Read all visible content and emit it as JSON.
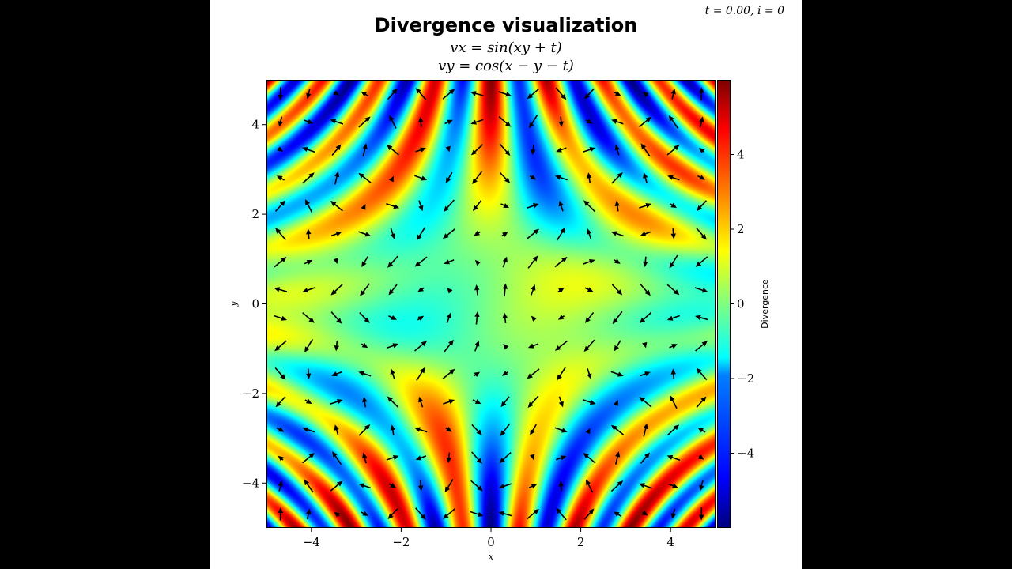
{
  "title": "Divergence visualization",
  "subtitle_vx": "vx = sin(xy + t)",
  "subtitle_vy": "vy = cos(x − y − t)",
  "corner_label": "t = 0.00, i = 0",
  "chart_data": {
    "type": "heatmap",
    "overlay": "quiver",
    "field": {
      "vx": "sin(x*y + t)",
      "vy": "cos(x - y - t)",
      "t": 0.0,
      "color_quantity": "divergence = y*cos(x*y + t) + sin(x - y - t)"
    },
    "xlabel": "x",
    "ylabel": "y",
    "xlim": [
      -5,
      5
    ],
    "ylim": [
      -5,
      5
    ],
    "x_ticks": [
      -4,
      -2,
      0,
      2,
      4
    ],
    "y_ticks": [
      -4,
      -2,
      0,
      2,
      4
    ],
    "x_tick_labels": [
      "−4",
      "−2",
      "0",
      "2",
      "4"
    ],
    "y_tick_labels": [
      "−4",
      "−2",
      "0",
      "2",
      "4"
    ],
    "quiver_grid": {
      "nx": 16,
      "ny": 16,
      "range": [
        -5,
        5
      ]
    },
    "colormap": "jet",
    "colorbar": {
      "label": "Divergence",
      "range": [
        -6,
        6
      ],
      "ticks": [
        -4,
        -2,
        0,
        2,
        4
      ],
      "tick_labels": [
        "−4",
        "−2",
        "0",
        "2",
        "4"
      ]
    },
    "grid": false
  }
}
